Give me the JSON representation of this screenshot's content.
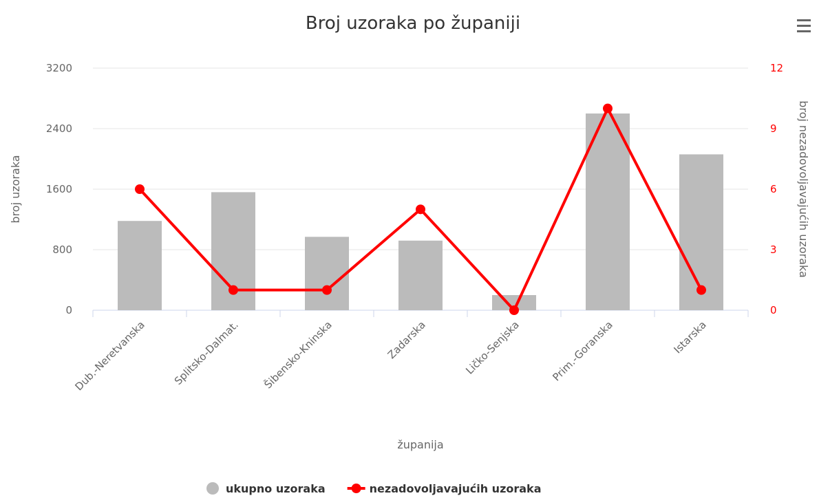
{
  "chart_data": {
    "type": "bar_line",
    "title": "Broj uzoraka po županiji",
    "x_label": "županija",
    "y_label": "broj uzoraka",
    "y2_label": "broj nezadovoljavajućih uzoraka",
    "categories": [
      "Dub.-Neretvanska",
      "Splitsko-Dalmat.",
      "Šibensko-Kninska",
      "Zadarska",
      "Ličko-Senjska",
      "Prim.-Goranska",
      "Istarska"
    ],
    "series": [
      {
        "name": "ukupno uzoraka",
        "type": "bar",
        "color": "#bbbbbb",
        "values": [
          1180,
          1560,
          970,
          920,
          200,
          2600,
          2060
        ]
      },
      {
        "name": "nezadovoljavajućih uzoraka",
        "type": "line",
        "axis": "y2",
        "color": "#ff0000",
        "values": [
          6,
          1,
          1,
          5,
          0,
          10,
          1
        ]
      }
    ],
    "ylim": [
      0,
      3200
    ],
    "yticks": [
      0,
      800,
      1600,
      2400,
      3200
    ],
    "y2lim": [
      0,
      12
    ],
    "y2ticks": [
      0,
      3,
      6,
      9,
      12
    ],
    "grid": true,
    "legend": "bottom"
  }
}
